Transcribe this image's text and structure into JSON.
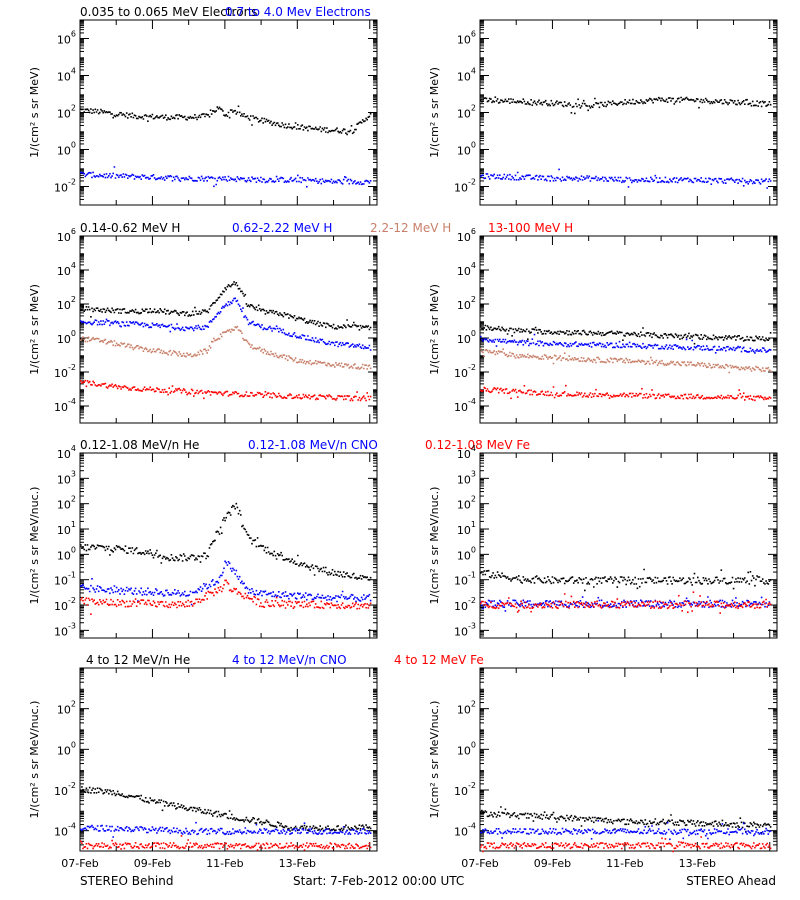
{
  "footer": {
    "left": "STEREO Behind",
    "center": "Start:  7-Feb-2012 00:00 UTC",
    "right": "STEREO Ahead"
  },
  "colors": {
    "black": "#000000",
    "blue": "#0000ff",
    "tan": "#c8806a",
    "red": "#ff0000"
  },
  "chart_data": [
    {
      "type": "scatter",
      "spacecraft": "STEREO Behind",
      "yscale": "log",
      "ylim": [
        0.001,
        10000000
      ],
      "yticks": [
        "10^-2",
        "10^0",
        "10^2",
        "10^4",
        "10^6"
      ],
      "ylabel": "1/(cm² s sr MeV)",
      "xticks": [
        "07-Feb",
        "09-Feb",
        "11-Feb",
        "13-Feb"
      ],
      "series": [
        {
          "name": "0.035 to 0.065 MeV Electrons",
          "color": "#000000",
          "x": [
            0,
            0.5,
            1,
            1.5,
            2,
            2.5,
            3,
            3.5,
            3.8,
            4,
            4.2,
            4.5,
            5,
            5.5,
            6,
            6.5,
            7,
            7.5,
            8
          ],
          "y": [
            150,
            120,
            90,
            70,
            65,
            60,
            60,
            70,
            200,
            80,
            150,
            70,
            40,
            25,
            18,
            14,
            12,
            11,
            90
          ]
        },
        {
          "name": "0.7 to 4.0 Mev Electrons",
          "color": "#0000ff",
          "x": [
            0,
            1,
            2,
            3,
            4,
            5,
            6,
            7,
            8
          ],
          "y": [
            0.05,
            0.04,
            0.035,
            0.03,
            0.03,
            0.025,
            0.025,
            0.02,
            0.02
          ]
        }
      ]
    },
    {
      "type": "scatter",
      "spacecraft": "STEREO Ahead",
      "yscale": "log",
      "ylim": [
        0.001,
        10000000
      ],
      "yticks": [
        "10^-2",
        "10^0",
        "10^2",
        "10^4",
        "10^6"
      ],
      "ylabel": "1/(cm² s sr MeV)",
      "xticks": [
        "07-Feb",
        "09-Feb",
        "11-Feb",
        "13-Feb"
      ],
      "series": [
        {
          "name": "0.035 to 0.065 MeV Electrons",
          "color": "#000000",
          "x": [
            0,
            1,
            2,
            3,
            4,
            5,
            6,
            7,
            8
          ],
          "y": [
            500,
            450,
            350,
            250,
            400,
            550,
            500,
            400,
            300
          ]
        },
        {
          "name": "0.7 to 4.0 Mev Electrons",
          "color": "#0000ff",
          "x": [
            0,
            1,
            2,
            3,
            4,
            5,
            6,
            7,
            8
          ],
          "y": [
            0.04,
            0.035,
            0.03,
            0.03,
            0.025,
            0.025,
            0.025,
            0.022,
            0.02
          ]
        }
      ]
    },
    {
      "type": "scatter",
      "spacecraft": "STEREO Behind",
      "yscale": "log",
      "ylim": [
        1e-05,
        1000000
      ],
      "yticks": [
        "10^-4",
        "10^-2",
        "10^0",
        "10^2",
        "10^4",
        "10^6"
      ],
      "ylabel": "1/(cm² s sr MeV)",
      "xticks": [
        "07-Feb",
        "09-Feb",
        "11-Feb",
        "13-Feb"
      ],
      "series": [
        {
          "name": "0.14-0.62 MeV H",
          "color": "#000000",
          "x": [
            0,
            0.5,
            1,
            1.5,
            2,
            2.5,
            3,
            3.5,
            3.7,
            4,
            4.3,
            4.6,
            5,
            5.5,
            6,
            6.5,
            7,
            7.5,
            8
          ],
          "y": [
            60,
            50,
            45,
            40,
            50,
            35,
            30,
            40,
            150,
            1000,
            2000,
            100,
            40,
            30,
            15,
            8,
            5,
            5,
            4
          ]
        },
        {
          "name": "0.62-2.22 MeV H",
          "color": "#0000ff",
          "x": [
            0,
            0.5,
            1,
            1.5,
            2,
            2.5,
            3,
            3.5,
            3.7,
            4,
            4.3,
            4.6,
            5,
            5.5,
            6,
            6.5,
            7,
            7.5,
            8
          ],
          "y": [
            10,
            9,
            8,
            7,
            6,
            5,
            4,
            5,
            20,
            100,
            200,
            10,
            5,
            3,
            1.5,
            0.8,
            0.5,
            0.4,
            0.3
          ]
        },
        {
          "name": "2.2-12 MeV H",
          "color": "#c8806a",
          "x": [
            0,
            0.5,
            1,
            1.5,
            2,
            2.5,
            3,
            3.5,
            3.7,
            4,
            4.3,
            4.6,
            5,
            5.5,
            6,
            6.5,
            7,
            7.5,
            8
          ],
          "y": [
            1,
            0.8,
            0.5,
            0.3,
            0.2,
            0.15,
            0.1,
            0.2,
            1,
            2,
            5,
            0.5,
            0.2,
            0.1,
            0.05,
            0.04,
            0.03,
            0.025,
            0.02
          ]
        },
        {
          "name": "13-100 MeV H",
          "color": "#ff0000",
          "x": [
            0,
            1,
            2,
            3,
            4,
            5,
            6,
            7,
            8
          ],
          "y": [
            0.003,
            0.0015,
            0.001,
            0.0008,
            0.0006,
            0.0005,
            0.0004,
            0.00035,
            0.0003
          ]
        }
      ]
    },
    {
      "type": "scatter",
      "spacecraft": "STEREO Ahead",
      "yscale": "log",
      "ylim": [
        1e-05,
        1000000
      ],
      "yticks": [
        "10^-4",
        "10^-2",
        "10^0",
        "10^2",
        "10^4",
        "10^6"
      ],
      "ylabel": "1/(cm² s sr MeV)",
      "xticks": [
        "07-Feb",
        "09-Feb",
        "11-Feb",
        "13-Feb"
      ],
      "series": [
        {
          "name": "0.14-0.62 MeV H",
          "color": "#000000",
          "x": [
            0,
            1,
            2,
            3,
            4,
            5,
            6,
            7,
            8
          ],
          "y": [
            5,
            3,
            2.5,
            2.2,
            2,
            1.5,
            1.3,
            1.1,
            1
          ]
        },
        {
          "name": "0.62-2.22 MeV H",
          "color": "#0000ff",
          "x": [
            0,
            1,
            2,
            3,
            4,
            5,
            6,
            7,
            8
          ],
          "y": [
            1,
            0.6,
            0.5,
            0.45,
            0.4,
            0.35,
            0.3,
            0.25,
            0.2
          ]
        },
        {
          "name": "2.2-12 MeV H",
          "color": "#c8806a",
          "x": [
            0,
            1,
            2,
            3,
            4,
            5,
            6,
            7,
            8
          ],
          "y": [
            0.2,
            0.1,
            0.08,
            0.06,
            0.05,
            0.04,
            0.03,
            0.02,
            0.015
          ]
        },
        {
          "name": "13-100 MeV H",
          "color": "#ff0000",
          "x": [
            0,
            1,
            2,
            3,
            4,
            5,
            6,
            7,
            8
          ],
          "y": [
            0.001,
            0.0008,
            0.0006,
            0.0005,
            0.0005,
            0.0004,
            0.0004,
            0.00035,
            0.0003
          ]
        }
      ]
    },
    {
      "type": "scatter",
      "spacecraft": "STEREO Behind",
      "yscale": "log",
      "ylim": [
        0.0005,
        10000
      ],
      "yticks": [
        "10^-3",
        "10^-2",
        "10^-1",
        "10^0",
        "10^1",
        "10^2",
        "10^3",
        "10^4"
      ],
      "ylabel": "1/(cm² s sr MeV/nuc.)",
      "xticks": [
        "07-Feb",
        "09-Feb",
        "11-Feb",
        "13-Feb"
      ],
      "series": [
        {
          "name": "0.12-1.08 MeV/n He",
          "color": "#000000",
          "x": [
            0,
            0.5,
            1,
            1.5,
            2,
            2.5,
            3,
            3.5,
            3.7,
            4,
            4.3,
            4.6,
            5,
            5.5,
            6,
            6.5,
            7,
            7.5,
            8
          ],
          "y": [
            2,
            2,
            1.8,
            1.5,
            1.2,
            0.8,
            0.8,
            1,
            5,
            30,
            100,
            5,
            2,
            1,
            0.5,
            0.3,
            0.2,
            0.15,
            0.1
          ]
        },
        {
          "name": "0.12-1.08 MeV/n CNO",
          "color": "#0000ff",
          "x": [
            0,
            1,
            2,
            3,
            3.8,
            4,
            4.2,
            4.6,
            5,
            6,
            7,
            8
          ],
          "y": [
            0.05,
            0.04,
            0.035,
            0.03,
            0.1,
            0.5,
            0.3,
            0.04,
            0.03,
            0.025,
            0.02,
            0.02
          ]
        },
        {
          "name": "0.12-1.08 MeV Fe",
          "color": "#ff0000",
          "x": [
            0,
            1,
            2,
            3,
            3.9,
            4,
            4.1,
            5,
            6,
            7,
            8
          ],
          "y": [
            0.015,
            0.013,
            0.012,
            0.011,
            0.05,
            0.1,
            0.05,
            0.012,
            0.011,
            0.011,
            0.01
          ]
        }
      ]
    },
    {
      "type": "scatter",
      "spacecraft": "STEREO Ahead",
      "yscale": "log",
      "ylim": [
        0.0005,
        10000
      ],
      "yticks": [
        "10^-3",
        "10^-2",
        "10^-1",
        "10^0",
        "10^1",
        "10^2",
        "10^3",
        "10^4"
      ],
      "ylabel": "1/(cm² s sr MeV/nuc.)",
      "xticks": [
        "07-Feb",
        "09-Feb",
        "11-Feb",
        "13-Feb"
      ],
      "series": [
        {
          "name": "0.12-1.08 MeV/n He",
          "color": "#000000",
          "x": [
            0,
            1,
            2,
            3,
            4,
            5,
            6,
            7,
            8
          ],
          "y": [
            0.2,
            0.12,
            0.1,
            0.1,
            0.1,
            0.1,
            0.1,
            0.1,
            0.1
          ]
        },
        {
          "name": "0.12-1.08 MeV/n CNO",
          "color": "#0000ff",
          "x": [
            0,
            2,
            4,
            6,
            8
          ],
          "y": [
            0.012,
            0.012,
            0.012,
            0.012,
            0.012
          ]
        },
        {
          "name": "0.12-1.08 MeV Fe",
          "color": "#ff0000",
          "x": [
            0,
            2,
            4,
            6,
            8
          ],
          "y": [
            0.011,
            0.011,
            0.011,
            0.011,
            0.011
          ]
        }
      ]
    },
    {
      "type": "scatter",
      "spacecraft": "STEREO Behind",
      "yscale": "log",
      "ylim": [
        1e-05,
        10000
      ],
      "yticks": [
        "10^-4",
        "10^-2",
        "10^0",
        "10^2"
      ],
      "ylabel": "1/(cm² s sr MeV/nuc.)",
      "xticks": [
        "07-Feb",
        "09-Feb",
        "11-Feb",
        "13-Feb"
      ],
      "series": [
        {
          "name": "4 to 12 MeV/n He",
          "color": "#000000",
          "x": [
            0,
            0.5,
            1,
            1.5,
            2,
            2.5,
            3,
            3.5,
            4,
            4.5,
            5,
            5.5,
            6,
            7,
            8
          ],
          "y": [
            0.012,
            0.01,
            0.008,
            0.005,
            0.003,
            0.002,
            0.0013,
            0.0009,
            0.0006,
            0.0004,
            0.0003,
            0.0002,
            0.00015,
            0.00015,
            0.00015
          ]
        },
        {
          "name": "4 to 12 MeV/n CNO",
          "color": "#0000ff",
          "x": [
            0,
            1,
            2,
            3,
            4,
            5,
            6,
            7,
            8
          ],
          "y": [
            0.00015,
            0.00014,
            0.00012,
            0.0001,
            0.0001,
            0.0001,
            0.0001,
            0.0001,
            0.0001
          ]
        },
        {
          "name": "4 to 12 MeV Fe",
          "color": "#ff0000",
          "x": [
            0,
            2,
            4,
            6,
            8
          ],
          "y": [
            2e-05,
            2e-05,
            2e-05,
            2e-05,
            2e-05
          ]
        }
      ]
    },
    {
      "type": "scatter",
      "spacecraft": "STEREO Ahead",
      "yscale": "log",
      "ylim": [
        1e-05,
        10000
      ],
      "yticks": [
        "10^-4",
        "10^-2",
        "10^0",
        "10^2"
      ],
      "ylabel": "1/(cm² s sr MeV/nuc.)",
      "xticks": [
        "07-Feb",
        "09-Feb",
        "11-Feb",
        "13-Feb"
      ],
      "series": [
        {
          "name": "4 to 12 MeV/n He",
          "color": "#000000",
          "x": [
            0,
            1,
            2,
            3,
            4,
            5,
            6,
            7,
            8
          ],
          "y": [
            0.0008,
            0.0006,
            0.0005,
            0.0004,
            0.0003,
            0.0003,
            0.00025,
            0.00022,
            0.0002
          ]
        },
        {
          "name": "4 to 12 MeV/n CNO",
          "color": "#0000ff",
          "x": [
            0,
            2,
            4,
            6,
            8
          ],
          "y": [
            0.0001,
            0.0001,
            0.0001,
            0.0001,
            0.0001
          ]
        },
        {
          "name": "4 to 12 MeV Fe",
          "color": "#ff0000",
          "x": [
            0,
            2,
            4,
            6,
            8
          ],
          "y": [
            2e-05,
            2e-05,
            2e-05,
            2e-05,
            2e-05
          ]
        }
      ]
    }
  ]
}
